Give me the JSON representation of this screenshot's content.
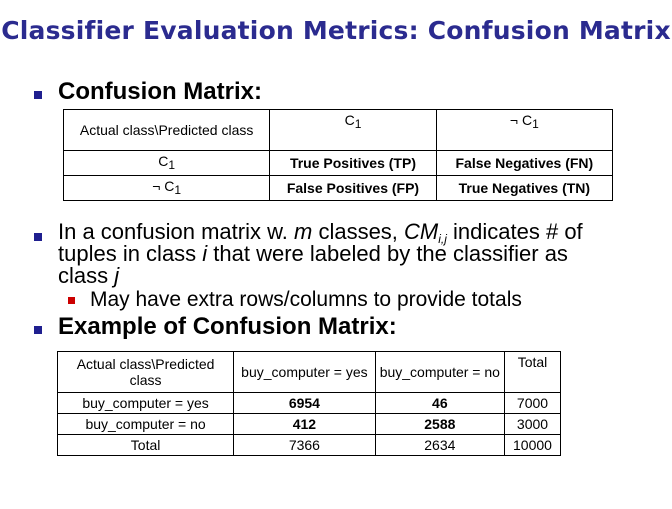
{
  "title": "Classifier Evaluation Metrics: Confusion Matrix",
  "section1": {
    "heading": "Confusion Matrix:",
    "table": {
      "corner": "Actual class\\Predicted class",
      "col1_base": "C",
      "col1_sub": "1",
      "col2_base": "¬ C",
      "col2_sub": "1",
      "row1_base": "C",
      "row1_sub": "1",
      "row2_base": "¬ C",
      "row2_sub": "1",
      "tp": "True Positives (TP)",
      "fn": "False Negatives (FN)",
      "fp": "False Positives (FP)",
      "tn": "True Negatives (TN)"
    }
  },
  "paragraph": {
    "line1_pre": "In a confusion matrix w. ",
    "m": "m",
    "line1_mid": " classes, ",
    "cm": "CM",
    "cm_sub": "i,j",
    "line1_post": " indicates # of",
    "line2_pre": "tuples in class ",
    "i": "i",
    "line2_post": "  that were labeled by the classifier as",
    "line3_pre": "class ",
    "j": "j"
  },
  "sub_bullet": "May have extra rows/columns to provide totals",
  "section2": {
    "heading": "Example of Confusion Matrix:",
    "headers": [
      "Actual class\\Predicted class",
      "buy_computer = yes",
      "buy_computer = no",
      "Total"
    ],
    "rows": [
      {
        "label": "buy_computer = yes",
        "v1": "6954",
        "v2": "46",
        "total": "7000"
      },
      {
        "label": "buy_computer = no",
        "v1": "412",
        "v2": "2588",
        "total": "3000"
      },
      {
        "label": "Total",
        "v1": "7366",
        "v2": "2634",
        "total": "10000"
      }
    ]
  },
  "colors": {
    "title": "#2b2b8f",
    "bullet": "#1f1f8f",
    "sub_bullet": "#cc0000"
  }
}
